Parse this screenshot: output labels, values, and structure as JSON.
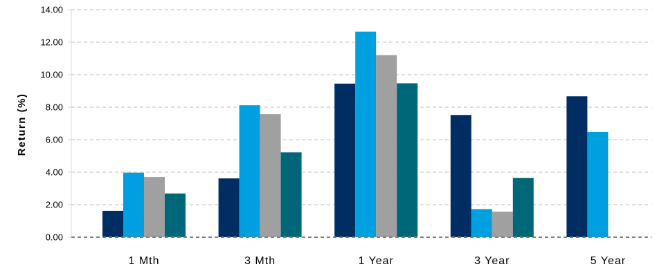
{
  "chart_data": {
    "type": "bar",
    "title": "",
    "xlabel": "",
    "ylabel": "Return (%)",
    "ylim": [
      0,
      14
    ],
    "y_ticks": [
      "0.00",
      "2.00",
      "4.00",
      "6.00",
      "8.00",
      "10.00",
      "12.00",
      "14.00"
    ],
    "grid": "horizontal-dashed",
    "categories": [
      "1 Mth",
      "3 Mth",
      "1 Year",
      "3 Year",
      "5 Year"
    ],
    "series": [
      {
        "color": "#002D62",
        "values": [
          1.62,
          3.62,
          9.45,
          7.52,
          8.67
        ]
      },
      {
        "color": "#009FDF",
        "values": [
          3.97,
          8.12,
          12.65,
          1.73,
          6.47
        ]
      },
      {
        "color": "#A0A0A0",
        "values": [
          3.7,
          7.57,
          11.2,
          1.57,
          null
        ]
      },
      {
        "color": "#006779",
        "values": [
          2.69,
          5.22,
          9.47,
          3.65,
          null
        ]
      }
    ]
  }
}
